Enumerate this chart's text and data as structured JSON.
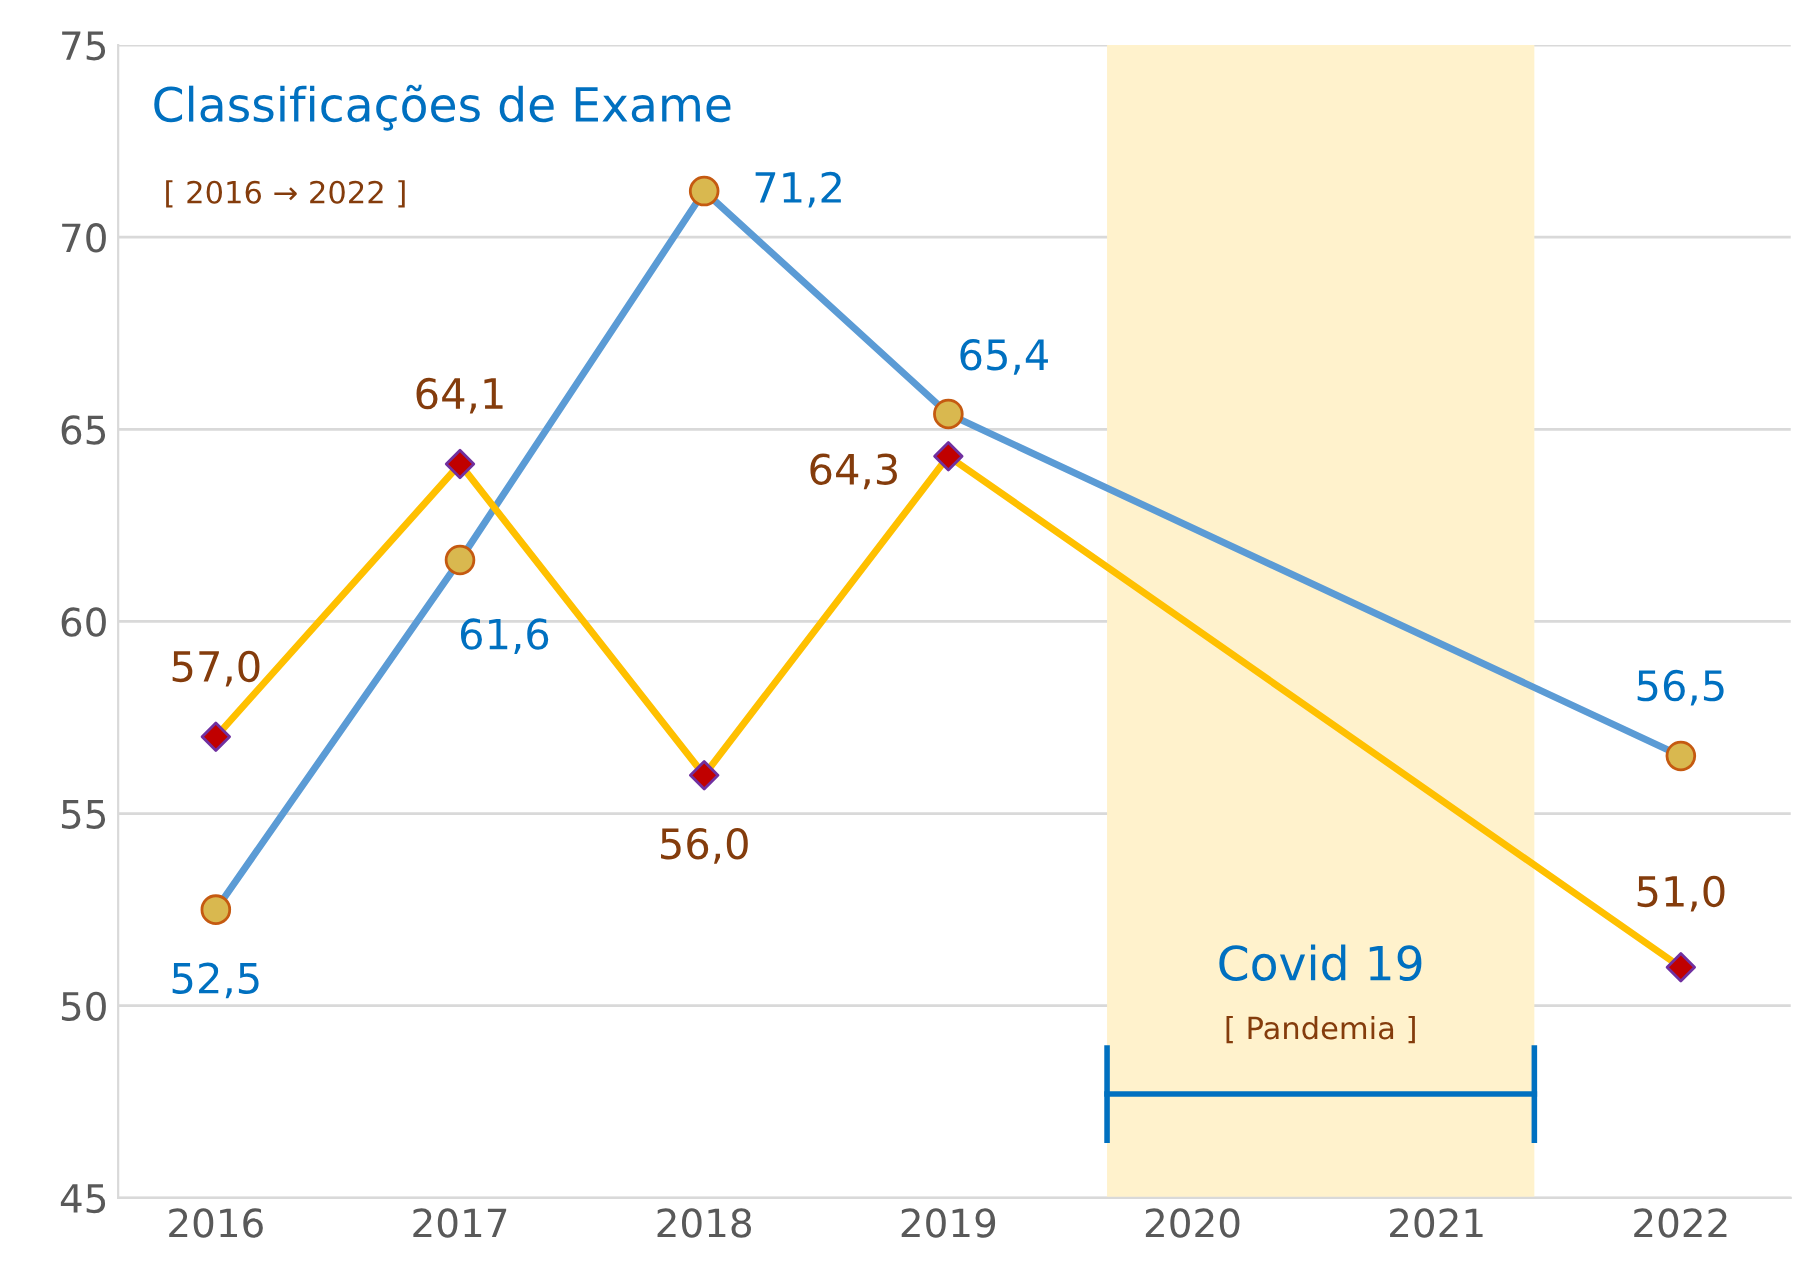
{
  "chart_data": {
    "type": "line",
    "title": "Classificações de Exame",
    "subtitle": "[ 2016 → 2022 ]",
    "xlim": [
      2015.6,
      2022.45
    ],
    "xticks": [
      2016,
      2017,
      2018,
      2019,
      2020,
      2021,
      2022
    ],
    "ylim": [
      45,
      75
    ],
    "yticks": [
      45,
      50,
      55,
      60,
      65,
      70,
      75
    ],
    "grid": "y",
    "legend": false,
    "series": [
      {
        "color": "#5b9bd5",
        "marker": "circle",
        "x": [
          2016,
          2017,
          2018,
          2019,
          2022
        ],
        "values": [
          52.5,
          61.6,
          71.2,
          65.4,
          56.5
        ],
        "value_labels": [
          "52,5",
          "61,6",
          "71,2",
          "65,4",
          "56,5"
        ],
        "colors": [
          "#d9b84f",
          "#d9b84f",
          "#d9b84f",
          "#d9b84f",
          "#d9b84f"
        ]
      },
      {
        "color": "#ffc000",
        "marker": "diamond",
        "x": [
          2016,
          2017,
          2018,
          2019,
          2022
        ],
        "values": [
          57.0,
          64.1,
          56.0,
          64.3,
          51.0
        ],
        "value_labels": [
          "57,0",
          "64,1",
          "56,0",
          "64,3",
          "51,0"
        ],
        "colors": [
          "#c00000",
          "#c00000",
          "#c00000",
          "#c00000",
          "#c00000"
        ]
      }
    ],
    "bands": [
      {
        "axis": "x",
        "from": 2019.65,
        "to": 2021.4,
        "label": "Covid 19",
        "color": "#fff2cc"
      }
    ],
    "annotations": [
      "[ Pandemia ]"
    ]
  }
}
